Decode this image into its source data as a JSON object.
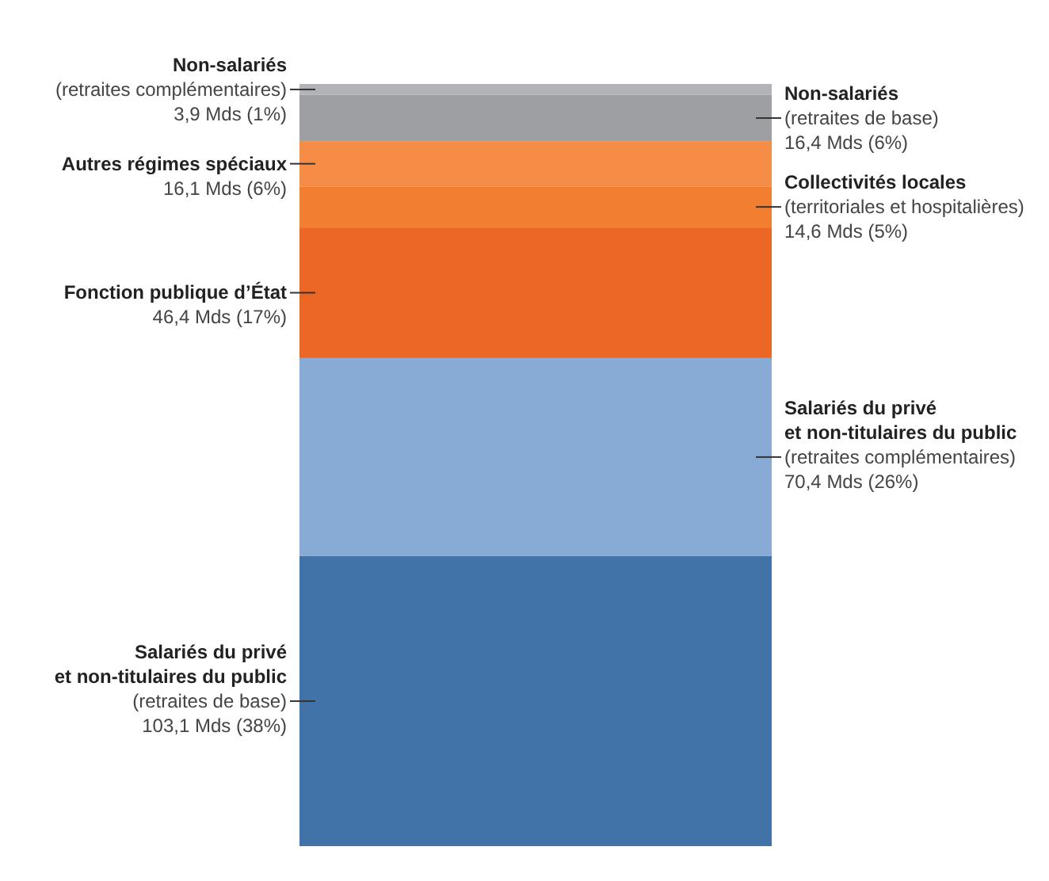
{
  "chart_data": {
    "type": "bar",
    "stacked": true,
    "categories": [
      null
    ],
    "series": [
      {
        "name": "Salariés du privé\net non-titulaires du public\n(retraites de base)",
        "color": "#4172a8",
        "values": [
          103.1
        ],
        "value_labels": [
          "103,1 Mds (38%)"
        ]
      },
      {
        "name": "Salariés du privé\net non-titulaires du public\n(retraites complémentaires)",
        "color": "#87abd4",
        "values": [
          70.4
        ],
        "value_labels": [
          "70,4 Mds (26%)"
        ]
      },
      {
        "name": "Fonction publique d’État",
        "color": "#ec6625",
        "values": [
          46.4
        ],
        "value_labels": [
          "46,4 Mds (17%)"
        ]
      },
      {
        "name": "Collectivités locales\n(territoriales et hospitalières)",
        "color": "#f27f2f",
        "values": [
          14.6
        ],
        "value_labels": [
          "14,6 Mds (5%)"
        ]
      },
      {
        "name": "Autres régimes spéciaux",
        "color": "#f68d47",
        "values": [
          16.1
        ],
        "value_labels": [
          "16,1 Mds (6%)"
        ]
      },
      {
        "name": "Non-salariés\n(retraites de base)",
        "color": "#9d9fa2",
        "values": [
          16.4
        ],
        "value_labels": [
          "16,4 Mds (6%)"
        ]
      },
      {
        "name": "Non-salariés\n(retraites complémentaires)",
        "color": "#b1b3b6",
        "values": [
          3.9
        ],
        "value_labels": [
          "3,9 Mds (1%)"
        ]
      }
    ]
  }
}
